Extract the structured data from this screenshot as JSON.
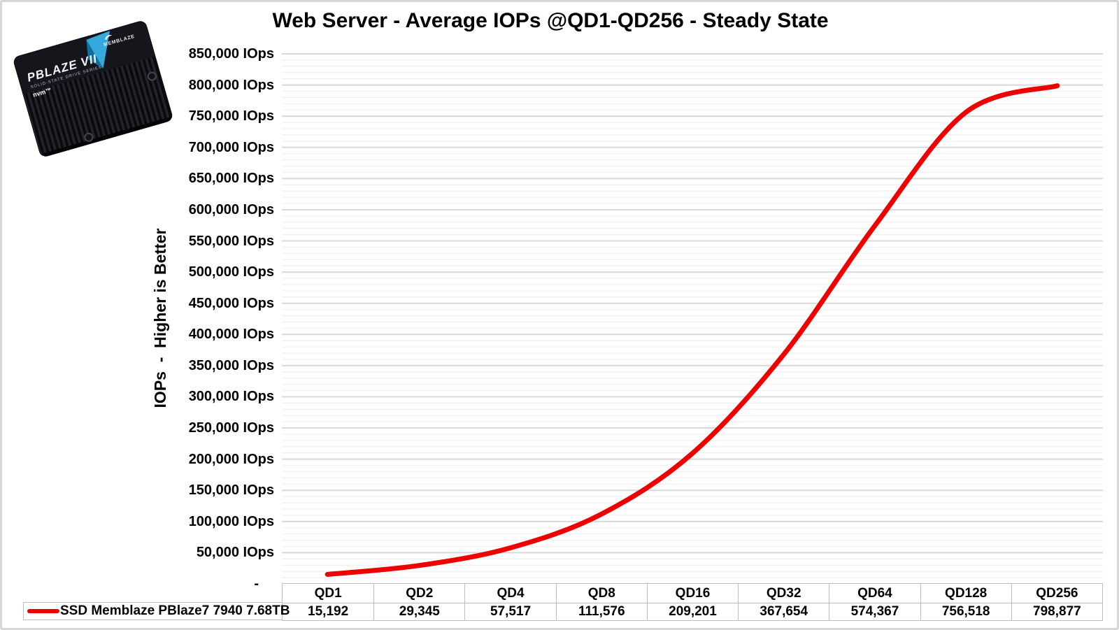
{
  "title": "Web Server - Average IOPs @QD1-QD256 - Steady State",
  "y_axis": {
    "title": "IOPs  -  Higher is Better",
    "tick_labels": [
      "850,000 IOps",
      "800,000 IOps",
      "750,000 IOps",
      "700,000 IOps",
      "650,000 IOps",
      "600,000 IOps",
      "550,000 IOps",
      "500,000 IOps",
      "450,000 IOps",
      "400,000 IOps",
      "350,000 IOps",
      "300,000 IOps",
      "250,000 IOps",
      "200,000 IOps",
      "150,000 IOps",
      "100,000 IOps",
      "50,000 IOps",
      "-"
    ]
  },
  "legend": {
    "label": "SSD Memblaze PBlaze7 7940 7.68TB",
    "marker_color": "#ee0000"
  },
  "table": {
    "headers": [
      "QD1",
      "QD2",
      "QD4",
      "QD8",
      "QD16",
      "QD32",
      "QD64",
      "QD128",
      "QD256"
    ],
    "values": [
      "15,192",
      "29,345",
      "57,517",
      "111,576",
      "209,201",
      "367,654",
      "574,367",
      "756,518",
      "798,877"
    ]
  },
  "product_photo": {
    "brand": "MEMBLAZE",
    "model": "PBLAZE VII",
    "series": "SOLID-STATE DRIVE SERIES",
    "interface_logo": "nvm™",
    "accent_color": "#35a8dc"
  },
  "colors": {
    "series": "#ee0000",
    "grid_major": "#d9d9d9",
    "grid_minor": "#f1f1f1",
    "table_border": "#bdbdbd",
    "page_border": "#d6d6d6"
  },
  "chart_data": {
    "type": "line",
    "title": "Web Server - Average IOPs @QD1-QD256 - Steady State",
    "xlabel": "",
    "ylabel": "IOPs - Higher is Better",
    "categories": [
      "QD1",
      "QD2",
      "QD4",
      "QD8",
      "QD16",
      "QD32",
      "QD64",
      "QD128",
      "QD256"
    ],
    "series": [
      {
        "name": "SSD Memblaze PBlaze7 7940 7.68TB",
        "color": "#ee0000",
        "values": [
          15192,
          29345,
          57517,
          111576,
          209201,
          367654,
          574367,
          756518,
          798877
        ]
      }
    ],
    "ylim": [
      0,
      850000
    ],
    "y_major_step": 50000,
    "y_minor_step": 10000,
    "y_tick_suffix": " IOps",
    "zero_tick_label": "-",
    "grid": true,
    "smooth": true,
    "legend_position": "bottom-left"
  }
}
